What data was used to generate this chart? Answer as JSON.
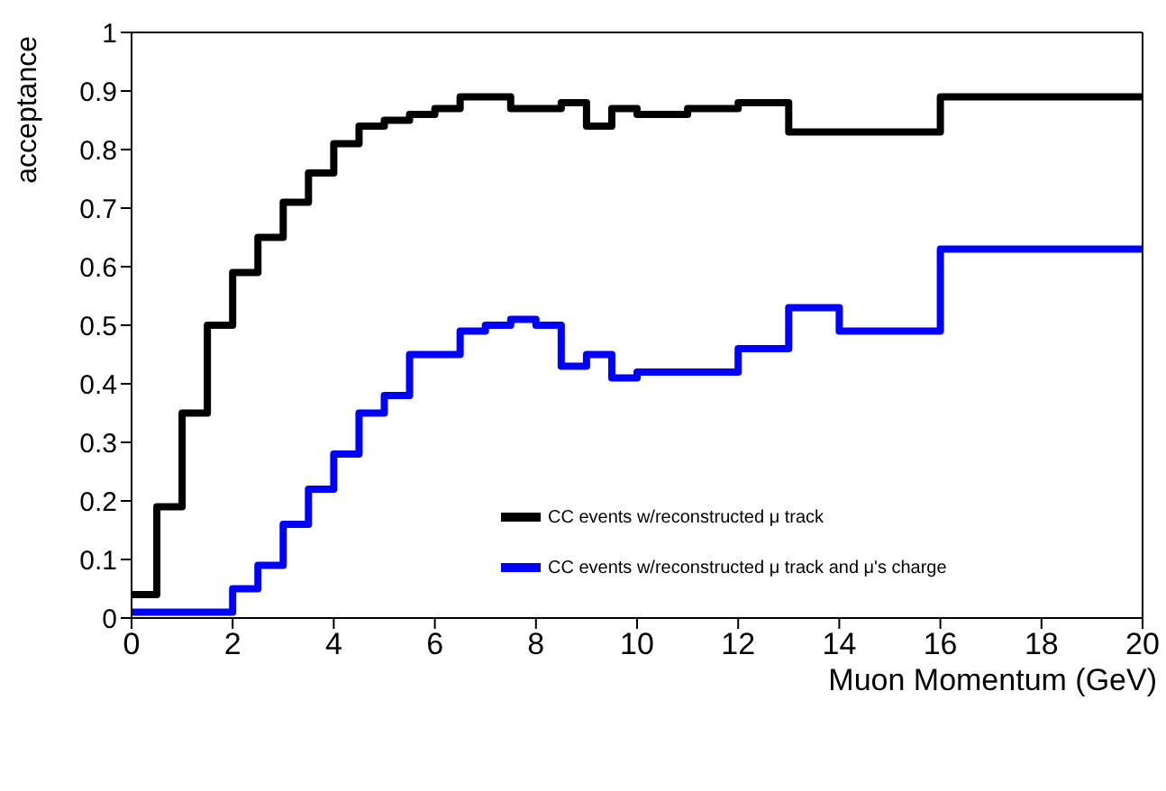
{
  "chart_data": {
    "type": "histogram",
    "xlabel": "Muon Momentum (GeV)",
    "ylabel": "acceptance",
    "bins": [
      0,
      0.5,
      1,
      1.5,
      2,
      2.5,
      3,
      3.5,
      4,
      4.5,
      5,
      5.5,
      6,
      6.5,
      7,
      7.5,
      8,
      8.5,
      9,
      9.5,
      10,
      11,
      12,
      13,
      14,
      16,
      20
    ],
    "series": [
      {
        "name": "CC events w/reconstructed μ track",
        "color": "#000000",
        "values": [
          0.04,
          0.19,
          0.35,
          0.5,
          0.59,
          0.65,
          0.71,
          0.76,
          0.81,
          0.84,
          0.85,
          0.86,
          0.87,
          0.89,
          0.89,
          0.87,
          0.87,
          0.88,
          0.84,
          0.87,
          0.86,
          0.87,
          0.88,
          0.83,
          0.83,
          0.89
        ]
      },
      {
        "name": "CC events w/reconstructed μ track and μ's charge",
        "color": "#0000ff",
        "values": [
          0.01,
          0.01,
          0.01,
          0.01,
          0.05,
          0.09,
          0.16,
          0.22,
          0.28,
          0.35,
          0.38,
          0.45,
          0.45,
          0.49,
          0.5,
          0.51,
          0.5,
          0.43,
          0.45,
          0.41,
          0.42,
          0.42,
          0.46,
          0.53,
          0.49,
          0.63
        ]
      }
    ],
    "xlim": [
      0,
      20
    ],
    "xticks": [
      0,
      2,
      4,
      6,
      8,
      10,
      12,
      14,
      16,
      18,
      20
    ],
    "ylim": [
      0,
      1
    ],
    "yticks": [
      0,
      0.1,
      0.2,
      0.3,
      0.4,
      0.5,
      0.6,
      0.7,
      0.8,
      0.9,
      1
    ],
    "grid": false,
    "legend": "bottom right"
  }
}
